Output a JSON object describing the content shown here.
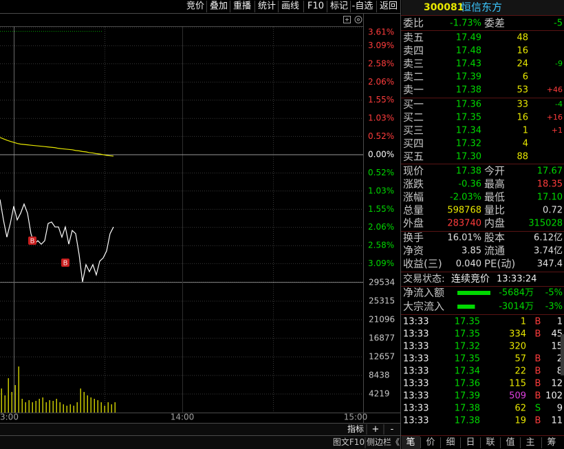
{
  "toolbar": [
    "竞价",
    "叠加",
    "重播",
    "统计",
    "画线",
    "F10",
    "标记",
    "-自选",
    "返回"
  ],
  "chart": {
    "price_axis": {
      "ylim": [
        -3.61,
        3.61
      ],
      "ticks": [
        {
          "value": 3.61,
          "label": "3.61%"
        },
        {
          "value": 3.09,
          "label": "3.09%"
        },
        {
          "value": 2.58,
          "label": "2.58%"
        },
        {
          "value": 2.06,
          "label": "2.06%"
        },
        {
          "value": 1.55,
          "label": "1.55%"
        },
        {
          "value": 1.03,
          "label": "1.03%"
        },
        {
          "value": 0.52,
          "label": "0.52%"
        },
        {
          "value": 0,
          "label": "0.00%"
        },
        {
          "value": -0.52,
          "label": "0.52%"
        },
        {
          "value": -1.03,
          "label": "1.03%"
        },
        {
          "value": -1.55,
          "label": "1.55%"
        },
        {
          "value": -2.06,
          "label": "2.06%"
        },
        {
          "value": -2.58,
          "label": "2.58%"
        },
        {
          "value": -3.09,
          "label": "3.09%"
        }
      ]
    },
    "volume_axis": {
      "ylim": [
        0,
        29534
      ],
      "ticks": [
        29534,
        25315,
        21096,
        16877,
        12657,
        8438,
        4219
      ]
    },
    "time_ticks": [
      "3:00",
      "14:00",
      "15:00"
    ],
    "price_pct": [
      -1.27,
      -1.85,
      -2.34,
      -1.95,
      -1.46,
      -1.85,
      -1.66,
      -1.4,
      -1.66,
      -2.24,
      -2.54,
      -2.44,
      -2.54,
      -2.44,
      -1.95,
      -1.91,
      -2.05,
      -2.05,
      -2.34,
      -2.05,
      -2.54,
      -2.15,
      -2.24,
      -2.83,
      -3.61,
      -3.12,
      -3.32,
      -3.12,
      -3.41,
      -3.02,
      -2.93,
      -2.73,
      -2.24,
      -2.05
    ],
    "avg_pct": [
      0.49,
      0.45,
      0.41,
      0.38,
      0.35,
      0.32,
      0.3,
      0.29,
      0.28,
      0.27,
      0.26,
      0.25,
      0.24,
      0.23,
      0.22,
      0.21,
      0.2,
      0.18,
      0.17,
      0.16,
      0.15,
      0.14,
      0.12,
      0.11,
      0.09,
      0.08,
      0.06,
      0.05,
      0.03,
      0.02,
      0.0,
      -0.02,
      -0.03,
      -0.04
    ],
    "volume": [
      5469,
      3907,
      7813,
      4688,
      6250,
      10469,
      3125,
      2344,
      2813,
      2344,
      2656,
      3125,
      3438,
      2344,
      2813,
      2656,
      3125,
      2344,
      1875,
      1563,
      1875,
      1563,
      2344,
      5469,
      4688,
      3907,
      3438,
      3125,
      2813,
      2344,
      1563,
      2344,
      1875,
      2344
    ],
    "markers": [
      "B",
      "B"
    ],
    "colors": {
      "price": "#ffffff",
      "avg": "#e8e800",
      "volume": "#c8c800",
      "up": "#ff3c3c",
      "down": "#00d800",
      "flat": "#ffffff"
    }
  },
  "chart_footer": {
    "indicator": "指标",
    "plus": "+",
    "minus": "-",
    "f10": "图文F10",
    "sidebar": "侧边栏《"
  },
  "quote": {
    "code": "300081",
    "name": "恒信东方",
    "weibi": {
      "label": "委比",
      "value": "-1.73%"
    },
    "weicha": {
      "label": "委差",
      "value": "-5"
    },
    "asks": [
      {
        "label": "卖五",
        "price": "17.49",
        "volume": "48"
      },
      {
        "label": "卖四",
        "price": "17.48",
        "volume": "16"
      },
      {
        "label": "卖三",
        "price": "17.43",
        "volume": "24",
        "change": "-9"
      },
      {
        "label": "卖二",
        "price": "17.39",
        "volume": "6"
      },
      {
        "label": "卖一",
        "price": "17.38",
        "volume": "53",
        "change": "+46"
      }
    ],
    "bids": [
      {
        "label": "买一",
        "price": "17.36",
        "volume": "33",
        "change": "-4"
      },
      {
        "label": "买二",
        "price": "17.35",
        "volume": "16",
        "change": "+16"
      },
      {
        "label": "买三",
        "price": "17.34",
        "volume": "1",
        "change": "+1"
      },
      {
        "label": "买四",
        "price": "17.32",
        "volume": "4"
      },
      {
        "label": "买五",
        "price": "17.30",
        "volume": "88"
      }
    ],
    "stats": [
      [
        {
          "label": "现价",
          "value": "17.38",
          "color": "#00d800"
        },
        {
          "label": "今开",
          "value": "17.67",
          "color": "#00d800"
        }
      ],
      [
        {
          "label": "涨跌",
          "value": "-0.36",
          "color": "#00d800"
        },
        {
          "label": "最高",
          "value": "18.35",
          "color": "#ff3c3c"
        }
      ],
      [
        {
          "label": "涨幅",
          "value": "-2.03%",
          "color": "#00d800"
        },
        {
          "label": "最低",
          "value": "17.10",
          "color": "#00d800"
        }
      ],
      [
        {
          "label": "总量",
          "value": "598768",
          "color": "#e8e800"
        },
        {
          "label": "量比",
          "value": "0.72",
          "color": "#e0e0e0"
        }
      ],
      [
        {
          "label": "外盘",
          "value": "283740",
          "color": "#ff3c3c"
        },
        {
          "label": "内盘",
          "value": "315028",
          "color": "#00d800"
        }
      ]
    ],
    "stats2": [
      [
        {
          "label": "换手",
          "value": "16.01%",
          "color": "#e0e0e0"
        },
        {
          "label": "股本",
          "value": "6.12亿",
          "color": "#e0e0e0"
        }
      ],
      [
        {
          "label": "净资",
          "value": "3.85",
          "color": "#e0e0e0"
        },
        {
          "label": "流通",
          "value": "3.74亿",
          "color": "#e0e0e0"
        }
      ],
      [
        {
          "label": "收益(三)",
          "value": "0.040",
          "color": "#e0e0e0"
        },
        {
          "label": "PE(动)",
          "value": "347.4",
          "color": "#e0e0e0"
        }
      ]
    ],
    "status": {
      "label": "交易状态:",
      "state": "连续竞价",
      "time": "13:33:24"
    },
    "flows": [
      {
        "label": "净流入额",
        "amount": {
          "value": -5684,
          "label": "-5684万"
        },
        "pct": "-5%"
      },
      {
        "label": "大宗流入",
        "amount": {
          "value": -3014,
          "label": "-3014万"
        },
        "pct": "-3%"
      }
    ],
    "trades": [
      {
        "time": "13:33",
        "price": "17.35",
        "volume": "1",
        "side": "B",
        "count": "1"
      },
      {
        "time": "13:33",
        "price": "17.35",
        "volume": "334",
        "side": "B",
        "count": "45"
      },
      {
        "time": "13:33",
        "price": "17.32",
        "volume": "320",
        "count": "15"
      },
      {
        "time": "13:33",
        "price": "17.35",
        "volume": "57",
        "side": "B",
        "count": "2"
      },
      {
        "time": "13:33",
        "price": "17.34",
        "volume": "22",
        "side": "B",
        "count": "8"
      },
      {
        "time": "13:33",
        "price": "17.36",
        "volume": "115",
        "side": "B",
        "count": "12"
      },
      {
        "time": "13:33",
        "price": "17.39",
        "volume": "509",
        "side": "B",
        "count": "102",
        "volume_color": "#e040e0"
      },
      {
        "time": "13:33",
        "price": "17.38",
        "volume": "62",
        "side": "S",
        "count": "9"
      },
      {
        "time": "13:33",
        "price": "17.38",
        "volume": "19",
        "side": "B",
        "count": "11"
      }
    ],
    "tabs": [
      "笔",
      "价",
      "细",
      "日",
      "联",
      "值",
      "主",
      "筹"
    ]
  }
}
